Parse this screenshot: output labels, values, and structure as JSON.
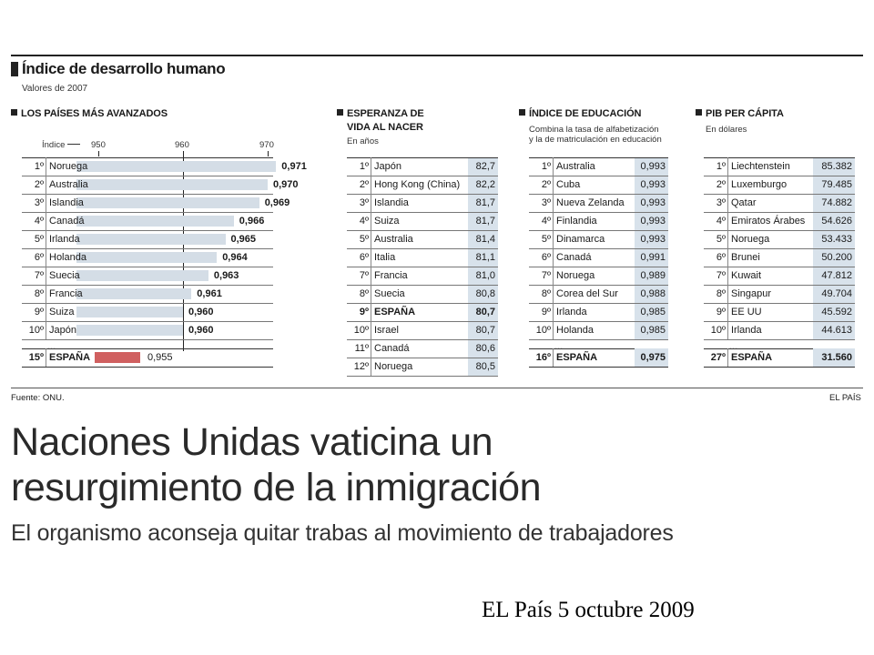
{
  "title": "Índice de desarrollo humano",
  "subtitle": "Valores de 2007",
  "source": "Fuente: ONU.",
  "brand": "EL PAÍS",
  "headline_line1": "Naciones Unidas vaticina un",
  "headline_line2": "resurgimiento de la inmigración",
  "deck": "El organismo aconseja quitar trabas al movimiento de trabajadores",
  "credit": "EL País 5 octubre 2009",
  "ellipsis": "...",
  "sections": {
    "idh": {
      "heading": "LOS PAÍSES MÁS AVANZADOS",
      "axis_label": "Índice",
      "ticks": [
        "950",
        "960",
        "970"
      ],
      "rows": [
        {
          "rank": "1º",
          "name": "Noruega",
          "value": "0,971",
          "num": 0.971
        },
        {
          "rank": "2º",
          "name": "Australia",
          "value": "0,970",
          "num": 0.97
        },
        {
          "rank": "3º",
          "name": "Islandia",
          "value": "0,969",
          "num": 0.969
        },
        {
          "rank": "4º",
          "name": "Canadá",
          "value": "0,966",
          "num": 0.966
        },
        {
          "rank": "5º",
          "name": "Irlanda",
          "value": "0,965",
          "num": 0.965
        },
        {
          "rank": "6º",
          "name": "Holanda",
          "value": "0,964",
          "num": 0.964
        },
        {
          "rank": "7º",
          "name": "Suecia",
          "value": "0,963",
          "num": 0.963
        },
        {
          "rank": "8º",
          "name": "Francia",
          "value": "0,961",
          "num": 0.961
        },
        {
          "rank": "9º",
          "name": "Suiza",
          "value": "0,960",
          "num": 0.96
        },
        {
          "rank": "10º",
          "name": "Japón",
          "value": "0,960",
          "num": 0.96
        }
      ],
      "spain": {
        "rank": "15º",
        "name": "ESPAÑA",
        "value": "0,955",
        "num": 0.955
      }
    },
    "life": {
      "heading_line1": "ESPERANZA DE",
      "heading_line2": "VIDA AL NACER",
      "sub": "En años",
      "rows": [
        {
          "rank": "1º",
          "name": "Japón",
          "value": "82,7"
        },
        {
          "rank": "2º",
          "name": "Hong Kong (China)",
          "value": "82,2"
        },
        {
          "rank": "3º",
          "name": "Islandia",
          "value": "81,7"
        },
        {
          "rank": "4º",
          "name": "Suiza",
          "value": "81,7"
        },
        {
          "rank": "5º",
          "name": "Australia",
          "value": "81,4"
        },
        {
          "rank": "6º",
          "name": "Italia",
          "value": "81,1"
        },
        {
          "rank": "7º",
          "name": "Francia",
          "value": "81,0"
        },
        {
          "rank": "8º",
          "name": "Suecia",
          "value": "80,8"
        },
        {
          "rank": "9º",
          "name": "ESPAÑA",
          "value": "80,7",
          "bold": true
        },
        {
          "rank": "10º",
          "name": "Israel",
          "value": "80,7"
        },
        {
          "rank": "11º",
          "name": "Canadá",
          "value": "80,6"
        },
        {
          "rank": "12º",
          "name": "Noruega",
          "value": "80,5"
        }
      ]
    },
    "edu": {
      "heading": "ÍNDICE DE EDUCACIÓN",
      "sub_line1": "Combina la tasa de alfabetización",
      "sub_line2": "y la de matriculación en educación",
      "rows": [
        {
          "rank": "1º",
          "name": "Australia",
          "value": "0,993"
        },
        {
          "rank": "2º",
          "name": "Cuba",
          "value": "0,993"
        },
        {
          "rank": "3º",
          "name": "Nueva Zelanda",
          "value": "0,993"
        },
        {
          "rank": "4º",
          "name": "Finlandia",
          "value": "0,993"
        },
        {
          "rank": "5º",
          "name": "Dinamarca",
          "value": "0,993"
        },
        {
          "rank": "6º",
          "name": "Canadá",
          "value": "0,991"
        },
        {
          "rank": "7º",
          "name": "Noruega",
          "value": "0,989"
        },
        {
          "rank": "8º",
          "name": "Corea del Sur",
          "value": "0,988"
        },
        {
          "rank": "9º",
          "name": "Irlanda",
          "value": "0,985"
        },
        {
          "rank": "10º",
          "name": "Holanda",
          "value": "0,985"
        }
      ],
      "spain": {
        "rank": "16º",
        "name": "ESPAÑA",
        "value": "0,975"
      }
    },
    "gdp": {
      "heading": "PIB PER CÁPITA",
      "sub": "En dólares",
      "rows": [
        {
          "rank": "1º",
          "name": "Liechtenstein",
          "value": "85.382"
        },
        {
          "rank": "2º",
          "name": "Luxemburgo",
          "value": "79.485"
        },
        {
          "rank": "3º",
          "name": "Qatar",
          "value": "74.882"
        },
        {
          "rank": "4º",
          "name": "Emiratos Árabes",
          "value": "54.626"
        },
        {
          "rank": "5º",
          "name": "Noruega",
          "value": "53.433"
        },
        {
          "rank": "6º",
          "name": "Brunei",
          "value": "50.200"
        },
        {
          "rank": "7º",
          "name": "Kuwait",
          "value": "47.812"
        },
        {
          "rank": "8º",
          "name": "Singapur",
          "value": "49.704"
        },
        {
          "rank": "9º",
          "name": "EE UU",
          "value": "45.592"
        },
        {
          "rank": "10º",
          "name": "Irlanda",
          "value": "44.613"
        }
      ],
      "spain": {
        "rank": "27º",
        "name": "ESPAÑA",
        "value": "31.560"
      }
    }
  },
  "colors": {
    "bar": "#d4dde6",
    "spain_bar": "#d06060",
    "value_column": "#d8e2eb"
  }
}
